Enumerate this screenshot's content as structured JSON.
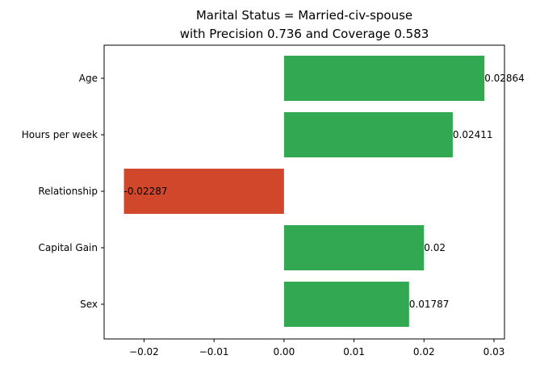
{
  "chart_data": {
    "type": "bar",
    "orientation": "horizontal",
    "title": [
      "Marital Status = Married-civ-spouse",
      "with Precision 0.736 and Coverage 0.583"
    ],
    "xlabel": "",
    "ylabel": "",
    "categories": [
      "Age",
      "Hours per week",
      "Relationship",
      "Capital Gain",
      "Sex"
    ],
    "values": [
      0.02864,
      0.02411,
      -0.02287,
      0.02,
      0.01787
    ],
    "value_labels": [
      "0.02864",
      "0.02411",
      "-0.02287",
      "0.02",
      "0.01787"
    ],
    "xlim": [
      -0.0257,
      0.0315
    ],
    "xticks": [
      -0.02,
      -0.01,
      0.0,
      0.01,
      0.02,
      0.03
    ],
    "xtick_labels": [
      "−0.02",
      "−0.01",
      "0.00",
      "0.01",
      "0.02",
      "0.03"
    ],
    "grid": false,
    "colors": {
      "positive": "#33a852",
      "negative": "#d0472b"
    }
  }
}
